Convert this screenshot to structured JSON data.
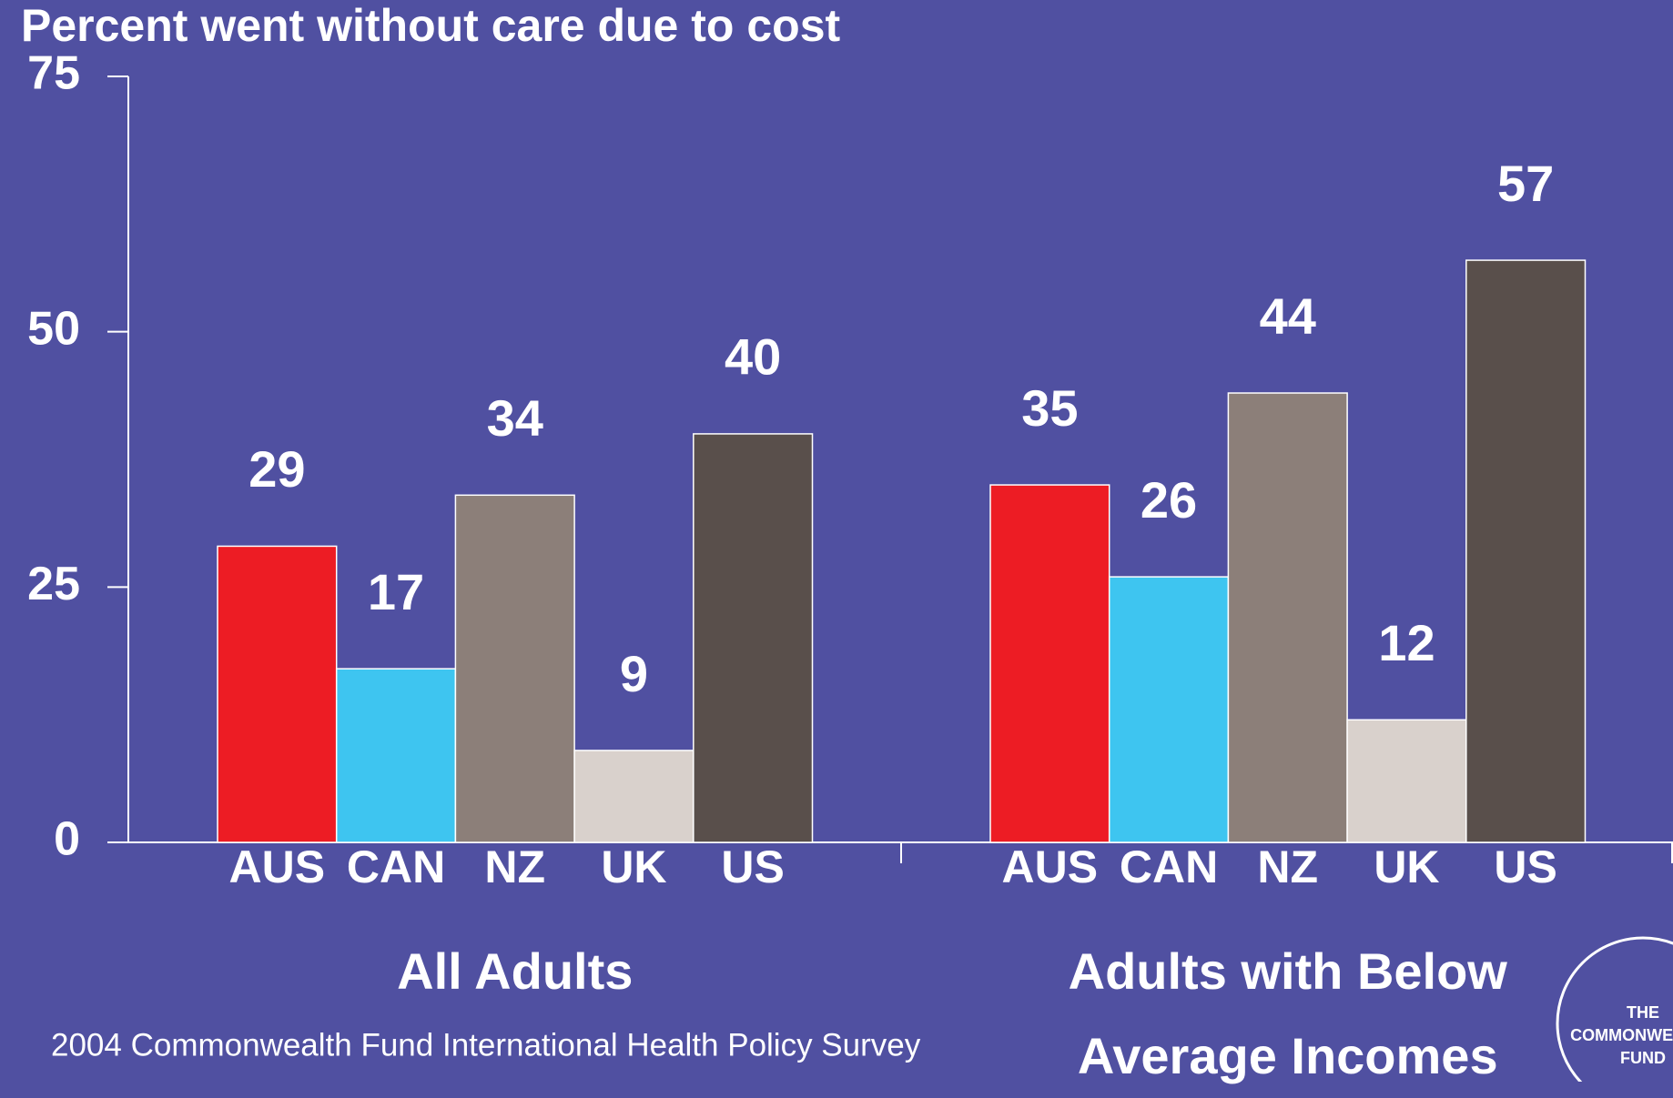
{
  "chart_data": {
    "type": "bar",
    "title": "Percent went without care due to cost",
    "categories": [
      "All Adults",
      "Adults with Below Average Incomes"
    ],
    "series": [
      {
        "name": "AUS",
        "color": "#ed1c24",
        "values": [
          29,
          35
        ]
      },
      {
        "name": "CAN",
        "color": "#3ec5f0",
        "values": [
          17,
          26
        ]
      },
      {
        "name": "NZ",
        "color": "#8c7f79",
        "values": [
          34,
          44
        ]
      },
      {
        "name": "UK",
        "color": "#d9d1cc",
        "values": [
          9,
          12
        ]
      },
      {
        "name": "US",
        "color": "#594f4b",
        "values": [
          40,
          57
        ]
      }
    ],
    "ylim": [
      0,
      75
    ],
    "yticks": [
      0,
      25,
      50,
      75
    ],
    "source": "2004 Commonwealth Fund International Health Policy Survey",
    "logo": [
      "THE",
      "COMMONWEALTH",
      "FUND"
    ]
  }
}
